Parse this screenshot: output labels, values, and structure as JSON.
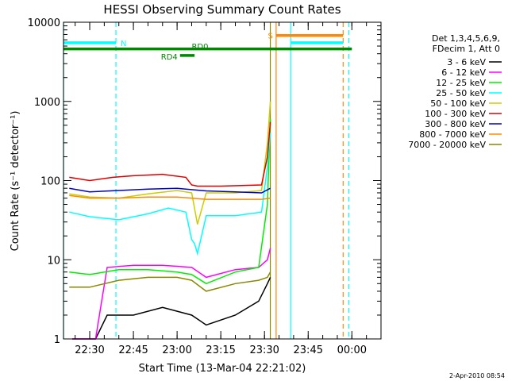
{
  "chart_data": {
    "type": "line",
    "title": "HESSI Observing Summary Count Rates",
    "xlabel": "Start Time (13-Mar-04 22:21:02)",
    "ylabel": "Count Rate (s⁻¹ detector⁻¹)",
    "y_scale": "log",
    "ylim": [
      1,
      10000
    ],
    "xlim": [
      "22:21",
      "00:10"
    ],
    "x_ticks": [
      "22:30",
      "22:45",
      "23:00",
      "23:15",
      "23:30",
      "23:45",
      "00:00"
    ],
    "y_ticks": [
      "1",
      "10",
      "100",
      "1000",
      "10000"
    ],
    "legend_position": "right",
    "legend_header": [
      "Det 1,3,4,5,6,9,",
      "FDecim 1, Att 0"
    ],
    "series": [
      {
        "name": "3 - 6 keV",
        "color": "#000000",
        "x": [
          "22:24",
          "22:32",
          "22:36",
          "22:45",
          "22:55",
          "23:05",
          "23:10",
          "23:20",
          "23:28",
          "23:31",
          "23:32"
        ],
        "y": [
          1,
          1,
          2,
          2,
          2.5,
          2,
          1.5,
          2,
          3,
          5,
          6
        ]
      },
      {
        "name": "6 - 12 keV",
        "color": "#ff00ff",
        "x": [
          "22:24",
          "22:32",
          "22:36",
          "22:45",
          "22:55",
          "23:05",
          "23:10",
          "23:20",
          "23:28",
          "23:31",
          "23:32"
        ],
        "y": [
          1,
          1,
          8,
          8.5,
          8.5,
          8,
          6,
          7.5,
          8,
          10,
          14
        ]
      },
      {
        "name": "12 - 25 keV",
        "color": "#00ee00",
        "x": [
          "22:23",
          "22:30",
          "22:40",
          "22:50",
          "23:00",
          "23:05",
          "23:10",
          "23:20",
          "23:28",
          "23:31",
          "23:32"
        ],
        "y": [
          7,
          6.5,
          7.5,
          7.5,
          7,
          6.5,
          5,
          7,
          8,
          50,
          600
        ]
      },
      {
        "name": "25 - 50 keV",
        "color": "#00ffff",
        "x": [
          "22:23",
          "22:30",
          "22:40",
          "22:50",
          "22:57",
          "23:03",
          "23:05",
          "23:06",
          "23:07",
          "23:10",
          "23:20",
          "23:29",
          "23:31",
          "23:32"
        ],
        "y": [
          40,
          35,
          32,
          38,
          45,
          40,
          18,
          16,
          12,
          36,
          36,
          40,
          150,
          400
        ]
      },
      {
        "name": "50 - 100 keV",
        "color": "#cccc00",
        "x": [
          "22:23",
          "22:30",
          "22:40",
          "22:50",
          "23:00",
          "23:05",
          "23:07",
          "23:10",
          "23:20",
          "23:29",
          "23:31",
          "23:32"
        ],
        "y": [
          68,
          62,
          60,
          68,
          75,
          70,
          28,
          70,
          70,
          75,
          300,
          1000
        ]
      },
      {
        "name": "100 - 300 keV",
        "color": "#dd0000",
        "x": [
          "22:23",
          "22:30",
          "22:38",
          "22:45",
          "22:55",
          "23:03",
          "23:05",
          "23:07",
          "23:15",
          "23:29",
          "23:31",
          "23:32"
        ],
        "y": [
          110,
          100,
          110,
          115,
          120,
          110,
          88,
          85,
          85,
          88,
          200,
          550
        ]
      },
      {
        "name": "300 - 800 keV",
        "color": "#0000cc",
        "x": [
          "22:23",
          "22:30",
          "22:40",
          "22:50",
          "23:00",
          "23:10",
          "23:20",
          "23:29",
          "23:32"
        ],
        "y": [
          80,
          72,
          75,
          78,
          80,
          74,
          72,
          70,
          80
        ]
      },
      {
        "name": "800 - 7000 keV",
        "color": "#ff8800",
        "x": [
          "22:23",
          "22:30",
          "22:40",
          "22:50",
          "23:00",
          "23:10",
          "23:20",
          "23:29",
          "23:32"
        ],
        "y": [
          65,
          60,
          60,
          62,
          62,
          58,
          58,
          58,
          60
        ]
      },
      {
        "name": "7000 - 20000 keV",
        "color": "#888800",
        "x": [
          "22:23",
          "22:30",
          "22:40",
          "22:50",
          "23:00",
          "23:05",
          "23:10",
          "23:20",
          "23:28",
          "23:31",
          "23:32"
        ],
        "y": [
          4.5,
          4.5,
          5.5,
          6,
          6,
          5.5,
          4,
          5,
          5.5,
          6,
          7
        ]
      }
    ],
    "annotations": [
      {
        "label": "N",
        "color": "#00ffff",
        "x_start": "22:21",
        "x_end": "22:39",
        "y": 5500
      },
      {
        "label": "S",
        "color": "#ff8800",
        "x_start": "23:34",
        "x_end": "23:57",
        "y": 6800
      },
      {
        "label": "",
        "color": "#00ffff",
        "x_start": "23:39",
        "x_end": "23:57",
        "y": 5500
      },
      {
        "label": "",
        "color": "#008800",
        "x_start": "22:21",
        "x_end": "00:00",
        "y": 4600
      },
      {
        "label": "RD0",
        "color": "#008800",
        "x_start": "23:05",
        "x_end": "23:05",
        "y": 5000
      },
      {
        "label": "RD4",
        "color": "#008800",
        "x_start": "23:01",
        "x_end": "23:06",
        "y": 3800
      }
    ],
    "vertical_markers": [
      {
        "x": "22:21",
        "color": "#00ffff",
        "style": "solid"
      },
      {
        "x": "22:39",
        "color": "#00ffff",
        "style": "dashed"
      },
      {
        "x": "23:32",
        "color": "#888800",
        "style": "solid"
      },
      {
        "x": "23:34",
        "color": "#ff8800",
        "style": "solid"
      },
      {
        "x": "23:39",
        "color": "#00ffff",
        "style": "solid"
      },
      {
        "x": "23:57",
        "color": "#ff8800",
        "style": "dashed"
      },
      {
        "x": "23:59",
        "color": "#00ffff",
        "style": "dashed"
      }
    ]
  },
  "footer": {
    "timestamp": "2-Apr-2010 08:54"
  }
}
